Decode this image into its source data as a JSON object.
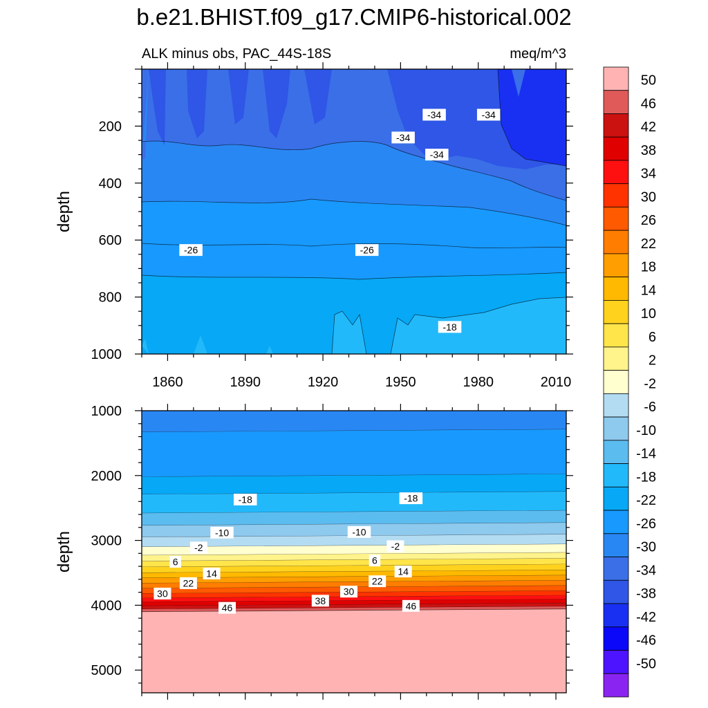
{
  "title": "b.e21.BHIST.f09_g17.CMIP6-historical.002",
  "subtitle_left": "ALK minus obs, PAC_44S-18S",
  "subtitle_right": "meq/m^3",
  "chart_data": [
    {
      "type": "heatmap",
      "panel": "upper",
      "xlabel": "",
      "ylabel": "depth",
      "xlim": [
        1850,
        2014
      ],
      "ylim": [
        0,
        1000
      ],
      "y_reversed": true,
      "x_ticks": [
        "1860",
        "1890",
        "1920",
        "1950",
        "1980",
        "2010"
      ],
      "y_ticks": [
        "200",
        "400",
        "600",
        "800",
        "1000"
      ],
      "contour_labels": [
        {
          "text": "-34",
          "x": 1951,
          "y": 240
        },
        {
          "text": "-34",
          "x": 1963,
          "y": 160
        },
        {
          "text": "-34",
          "x": 1964,
          "y": 300
        },
        {
          "text": "-34",
          "x": 1984,
          "y": 160
        },
        {
          "text": "-26",
          "x": 1869,
          "y": 635
        },
        {
          "text": "-26",
          "x": 1937,
          "y": 635
        },
        {
          "text": "-18",
          "x": 1969,
          "y": 905
        }
      ]
    },
    {
      "type": "heatmap",
      "panel": "lower",
      "xlabel": "",
      "ylabel": "depth",
      "xlim": [
        1850,
        2014
      ],
      "ylim": [
        1000,
        5350
      ],
      "y_reversed": true,
      "y_ticks": [
        "1000",
        "2000",
        "3000",
        "4000",
        "5000"
      ],
      "contour_labels": [
        {
          "text": "-18",
          "x": 1890,
          "y": 2370
        },
        {
          "text": "-18",
          "x": 1954,
          "y": 2350
        },
        {
          "text": "-10",
          "x": 1881,
          "y": 2880
        },
        {
          "text": "-10",
          "x": 1934,
          "y": 2870
        },
        {
          "text": "-2",
          "x": 1872,
          "y": 3110
        },
        {
          "text": "-2",
          "x": 1948,
          "y": 3090
        },
        {
          "text": "6",
          "x": 1863,
          "y": 3330
        },
        {
          "text": "6",
          "x": 1940,
          "y": 3310
        },
        {
          "text": "14",
          "x": 1877,
          "y": 3510
        },
        {
          "text": "14",
          "x": 1951,
          "y": 3480
        },
        {
          "text": "22",
          "x": 1868,
          "y": 3660
        },
        {
          "text": "22",
          "x": 1941,
          "y": 3630
        },
        {
          "text": "30",
          "x": 1858,
          "y": 3820
        },
        {
          "text": "30",
          "x": 1930,
          "y": 3790
        },
        {
          "text": "38",
          "x": 1919,
          "y": 3930
        },
        {
          "text": "46",
          "x": 1883,
          "y": 4040
        },
        {
          "text": "46",
          "x": 1954,
          "y": 4010
        }
      ]
    }
  ],
  "colorbar": {
    "labels": [
      "50",
      "46",
      "42",
      "38",
      "34",
      "30",
      "26",
      "22",
      "18",
      "14",
      "10",
      "6",
      "2",
      "-2",
      "-6",
      "-10",
      "-14",
      "-18",
      "-22",
      "-26",
      "-30",
      "-34",
      "-38",
      "-42",
      "-46",
      "-50"
    ],
    "colors": [
      "#ffb3b3",
      "#e05a5a",
      "#cc1111",
      "#e00000",
      "#ff1010",
      "#ff3300",
      "#ff5a00",
      "#ff7d00",
      "#ff9e00",
      "#ffb900",
      "#ffd21e",
      "#ffe54a",
      "#fff38c",
      "#ffffd0",
      "#b3dcf2",
      "#8ec9ee",
      "#5bbcf0",
      "#22b9fb",
      "#07a8f5",
      "#1899fd",
      "#2987f3",
      "#3a6fe8",
      "#2f56e6",
      "#1930f2",
      "#0b08fa",
      "#4d14ff",
      "#8a24f0"
    ]
  }
}
